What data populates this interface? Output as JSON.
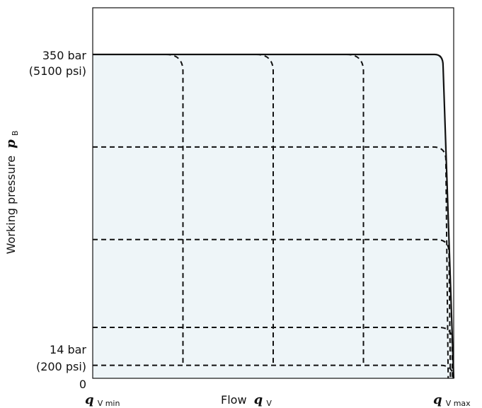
{
  "chart_data": {
    "type": "area",
    "title": "",
    "x_axis": {
      "label_prefix": "Flow",
      "label_symbol": "q",
      "label_subscript": "V",
      "tick_labels": [
        {
          "symbol": "q",
          "subscript": "V min"
        },
        {
          "symbol": "q",
          "subscript": "V max"
        }
      ],
      "range": [
        0,
        1
      ]
    },
    "y_axis": {
      "label_prefix": "Working pressure",
      "label_symbol": "p",
      "label_subscript": "B",
      "range": [
        0,
        400
      ],
      "unit": "bar",
      "tick_labels": [
        {
          "value": 350,
          "line1": "350 bar",
          "line2": "(5100 psi)"
        },
        {
          "value": 14,
          "line1": "14 bar",
          "line2": "(200 psi)"
        },
        {
          "value": 0,
          "line1": "0",
          "line2": ""
        }
      ]
    },
    "envelope": {
      "description_values": "Operating range: pressure from 14 bar to 350 bar, flow from qV min to qV max",
      "max_pressure_bar": 350,
      "min_pressure_bar": 14,
      "fill_color": "#eef5f8",
      "line_color": "#111111"
    },
    "dashed_pressure_levels_bar": [
      250,
      150,
      55,
      14
    ],
    "dashed_flow_levels": [
      0.25,
      0.5,
      0.75
    ],
    "grid": false,
    "legend": "none"
  }
}
